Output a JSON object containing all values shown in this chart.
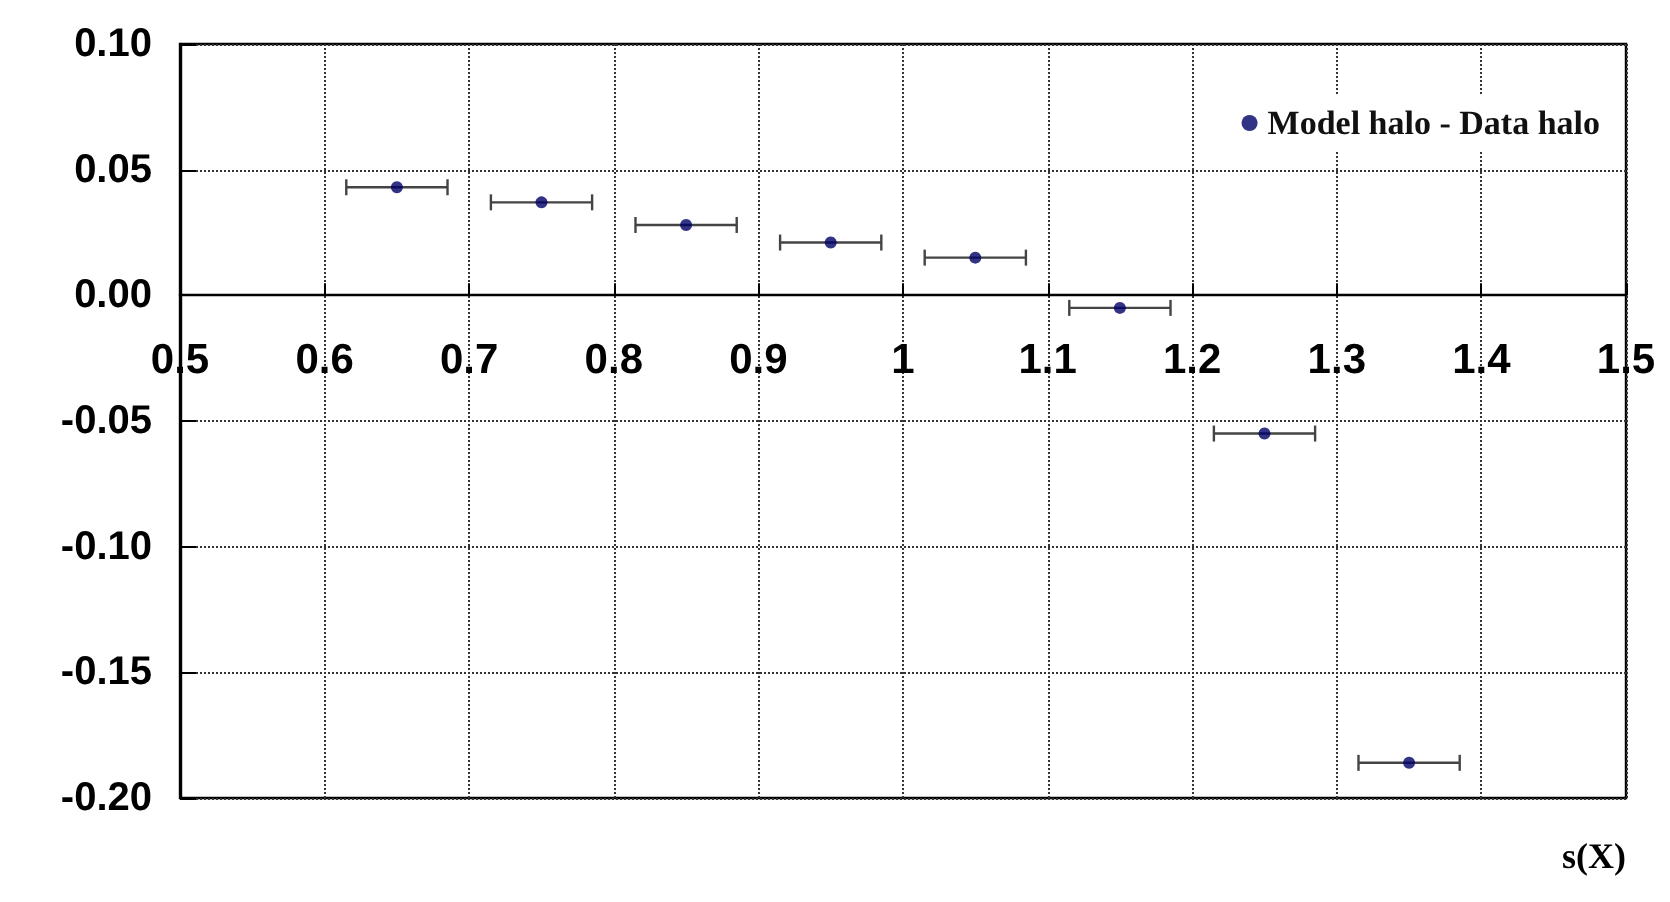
{
  "chart_data": {
    "type": "scatter",
    "xlabel": "s(X)",
    "x": [
      0.65,
      0.75,
      0.85,
      0.95,
      1.05,
      1.15,
      1.25,
      1.35
    ],
    "series": [
      {
        "name": "Model halo - Data halo",
        "color": "#000066",
        "values": [
          0.043,
          0.037,
          0.028,
          0.021,
          0.015,
          -0.005,
          -0.055,
          -0.186
        ],
        "xerrors": [
          0.035,
          0.035,
          0.035,
          0.035,
          0.035,
          0.035,
          0.035,
          0.035
        ]
      }
    ],
    "xlim": [
      0.5,
      1.5
    ],
    "xticks": [
      0.5,
      0.6,
      0.7,
      0.8,
      0.9,
      1,
      1.1,
      1.2,
      1.3,
      1.4,
      1.5
    ],
    "ylim": [
      -0.2,
      0.1
    ],
    "yticks": [
      {
        "value": -0.2,
        "label": "-0.20"
      },
      {
        "value": -0.15,
        "label": "-0.15"
      },
      {
        "value": -0.1,
        "label": "-0.10"
      },
      {
        "value": -0.05,
        "label": "-0.05"
      },
      {
        "value": 0,
        "label": "0.00"
      },
      {
        "value": 0.05,
        "label": "0.05"
      },
      {
        "value": 0.1,
        "label": "0.10"
      }
    ],
    "grid": true,
    "legend": "top right",
    "marker": "circle"
  }
}
